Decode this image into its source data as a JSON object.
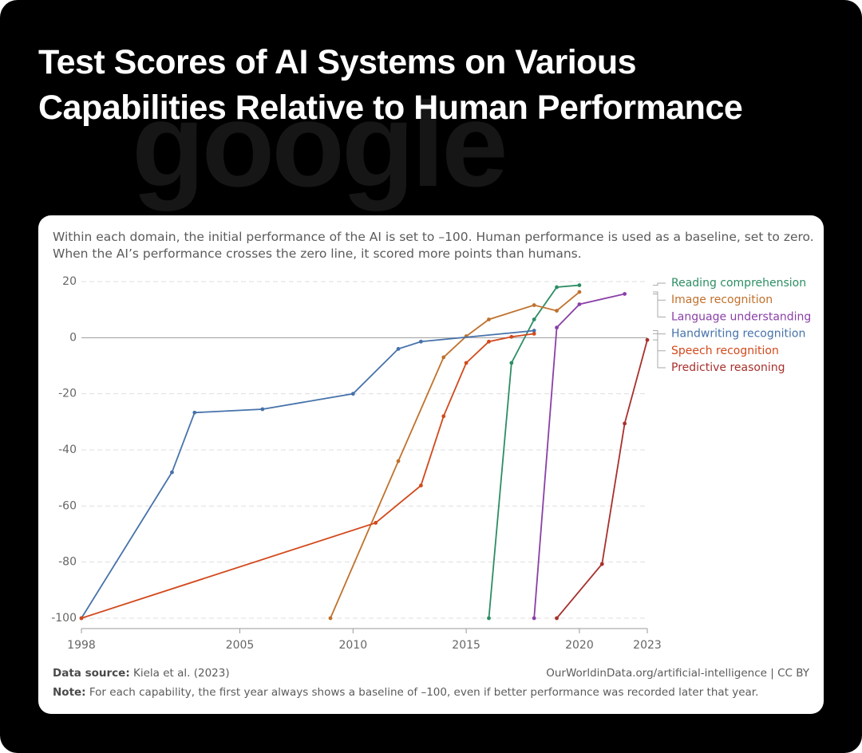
{
  "watermark": "google",
  "chart_data": {
    "type": "line",
    "title": "Test Scores of AI Systems on Various Capabilities Relative to Human Performance",
    "subtitle": "Within each domain, the initial performance of the AI is set to –100. Human performance is used as a baseline, set to zero. When the AI’s performance crosses the zero line, it scored more points than humans.",
    "source_label": "Data source:",
    "source": "Kiela et al. (2023)",
    "credit": "OurWorldinData.org/artificial-intelligence | CC BY",
    "note_label": "Note:",
    "note": "For each capability, the first year always shows a baseline of –100, even if better performance was recorded later that year.",
    "xlim": [
      1998,
      2023
    ],
    "xticks": [
      1998,
      2005,
      2010,
      2015,
      2020,
      2023
    ],
    "ylim": [
      -100,
      20
    ],
    "yticks": [
      -100,
      -80,
      -60,
      -40,
      -20,
      0,
      20
    ],
    "grid": true,
    "series": [
      {
        "name": "Reading comprehension",
        "color": "#2c8d64",
        "x": [
          2016,
          2017,
          2018,
          2019,
          2020
        ],
        "values": [
          -100,
          -9,
          6.5,
          18,
          18.7
        ]
      },
      {
        "name": "Image recognition",
        "color": "#c0712c",
        "x": [
          2009,
          2012,
          2014,
          2015,
          2016,
          2018,
          2019,
          2020
        ],
        "values": [
          -100,
          -44,
          -7,
          0.5,
          6.5,
          11.6,
          9.6,
          16.3
        ]
      },
      {
        "name": "Language understanding",
        "color": "#8a3fa8",
        "x": [
          2018,
          2019,
          2020,
          2022
        ],
        "values": [
          -100,
          3.6,
          11.9,
          15.6
        ]
      },
      {
        "name": "Handwriting recognition",
        "color": "#4672aa",
        "x": [
          1998,
          2002,
          2003,
          2006,
          2010,
          2012,
          2013,
          2018
        ],
        "values": [
          -100,
          -48,
          -26.7,
          -25.5,
          -20,
          -4,
          -1.4,
          2.5
        ]
      },
      {
        "name": "Speech recognition",
        "color": "#d2491c",
        "x": [
          1998,
          2011,
          2013,
          2014,
          2015,
          2016,
          2017,
          2018
        ],
        "values": [
          -100,
          -66,
          -52.7,
          -28,
          -9,
          -1.4,
          0.3,
          1.4
        ]
      },
      {
        "name": "Predictive reasoning",
        "color": "#a8302c",
        "x": [
          2019,
          2021,
          2022,
          2023
        ],
        "values": [
          -100,
          -80.7,
          -30.6,
          -0.8
        ]
      }
    ]
  }
}
